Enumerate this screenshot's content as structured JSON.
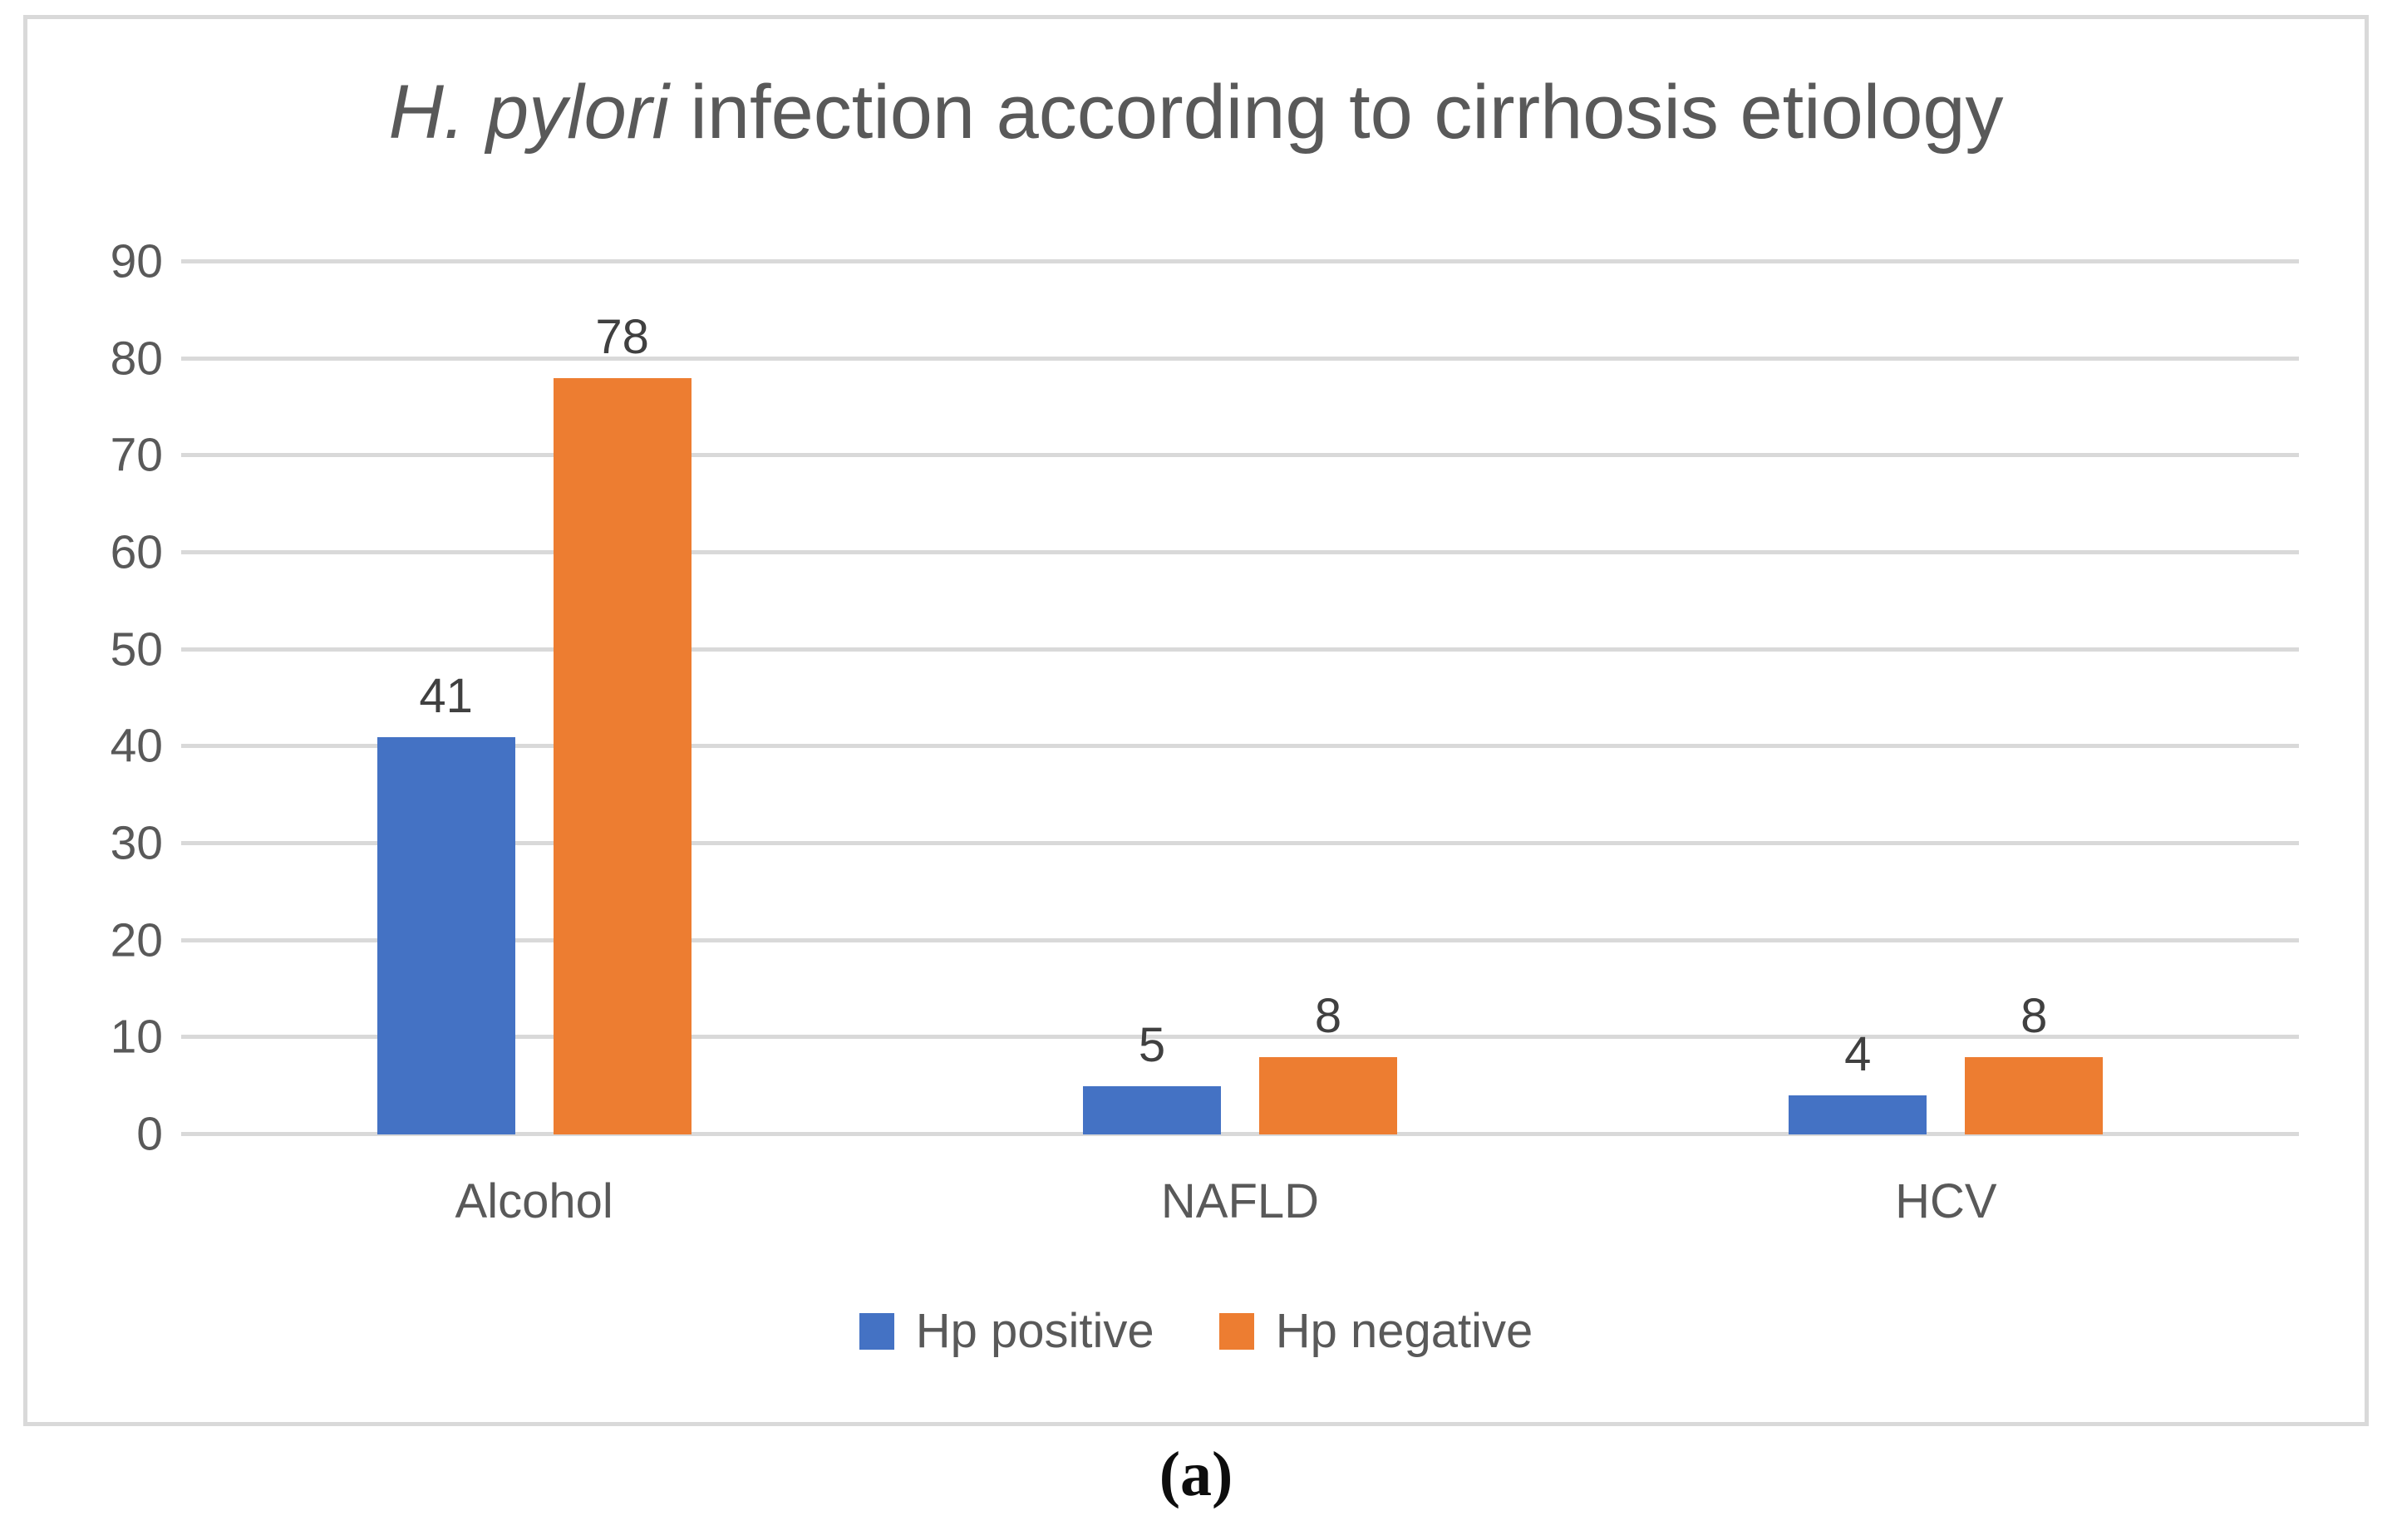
{
  "figure": {
    "caption": "(a)"
  },
  "chart_data": {
    "type": "bar",
    "title": "H. pylori infection according to cirrhosis etiology",
    "title_italic": "H. pylori",
    "title_rest": " infection according to cirrhosis etiology",
    "categories": [
      "Alcohol",
      "NAFLD",
      "HCV"
    ],
    "series": [
      {
        "name": "Hp positive",
        "color": "#4472C4",
        "values": [
          41,
          5,
          4
        ]
      },
      {
        "name": "Hp negative",
        "color": "#ED7D31",
        "values": [
          78,
          8,
          8
        ]
      }
    ],
    "ylim": [
      0,
      90
    ],
    "yticks": [
      0,
      10,
      20,
      30,
      40,
      50,
      60,
      70,
      80,
      90
    ],
    "grid": "horizontal",
    "legend_position": "bottom",
    "data_labels": "outside-end"
  },
  "colors": {
    "background": "#FFFFFF",
    "frame_border": "#D9D9D9",
    "gridline": "#D9D9D9",
    "title_text": "#595959",
    "axis_text": "#595959",
    "data_label_text": "#404040"
  }
}
